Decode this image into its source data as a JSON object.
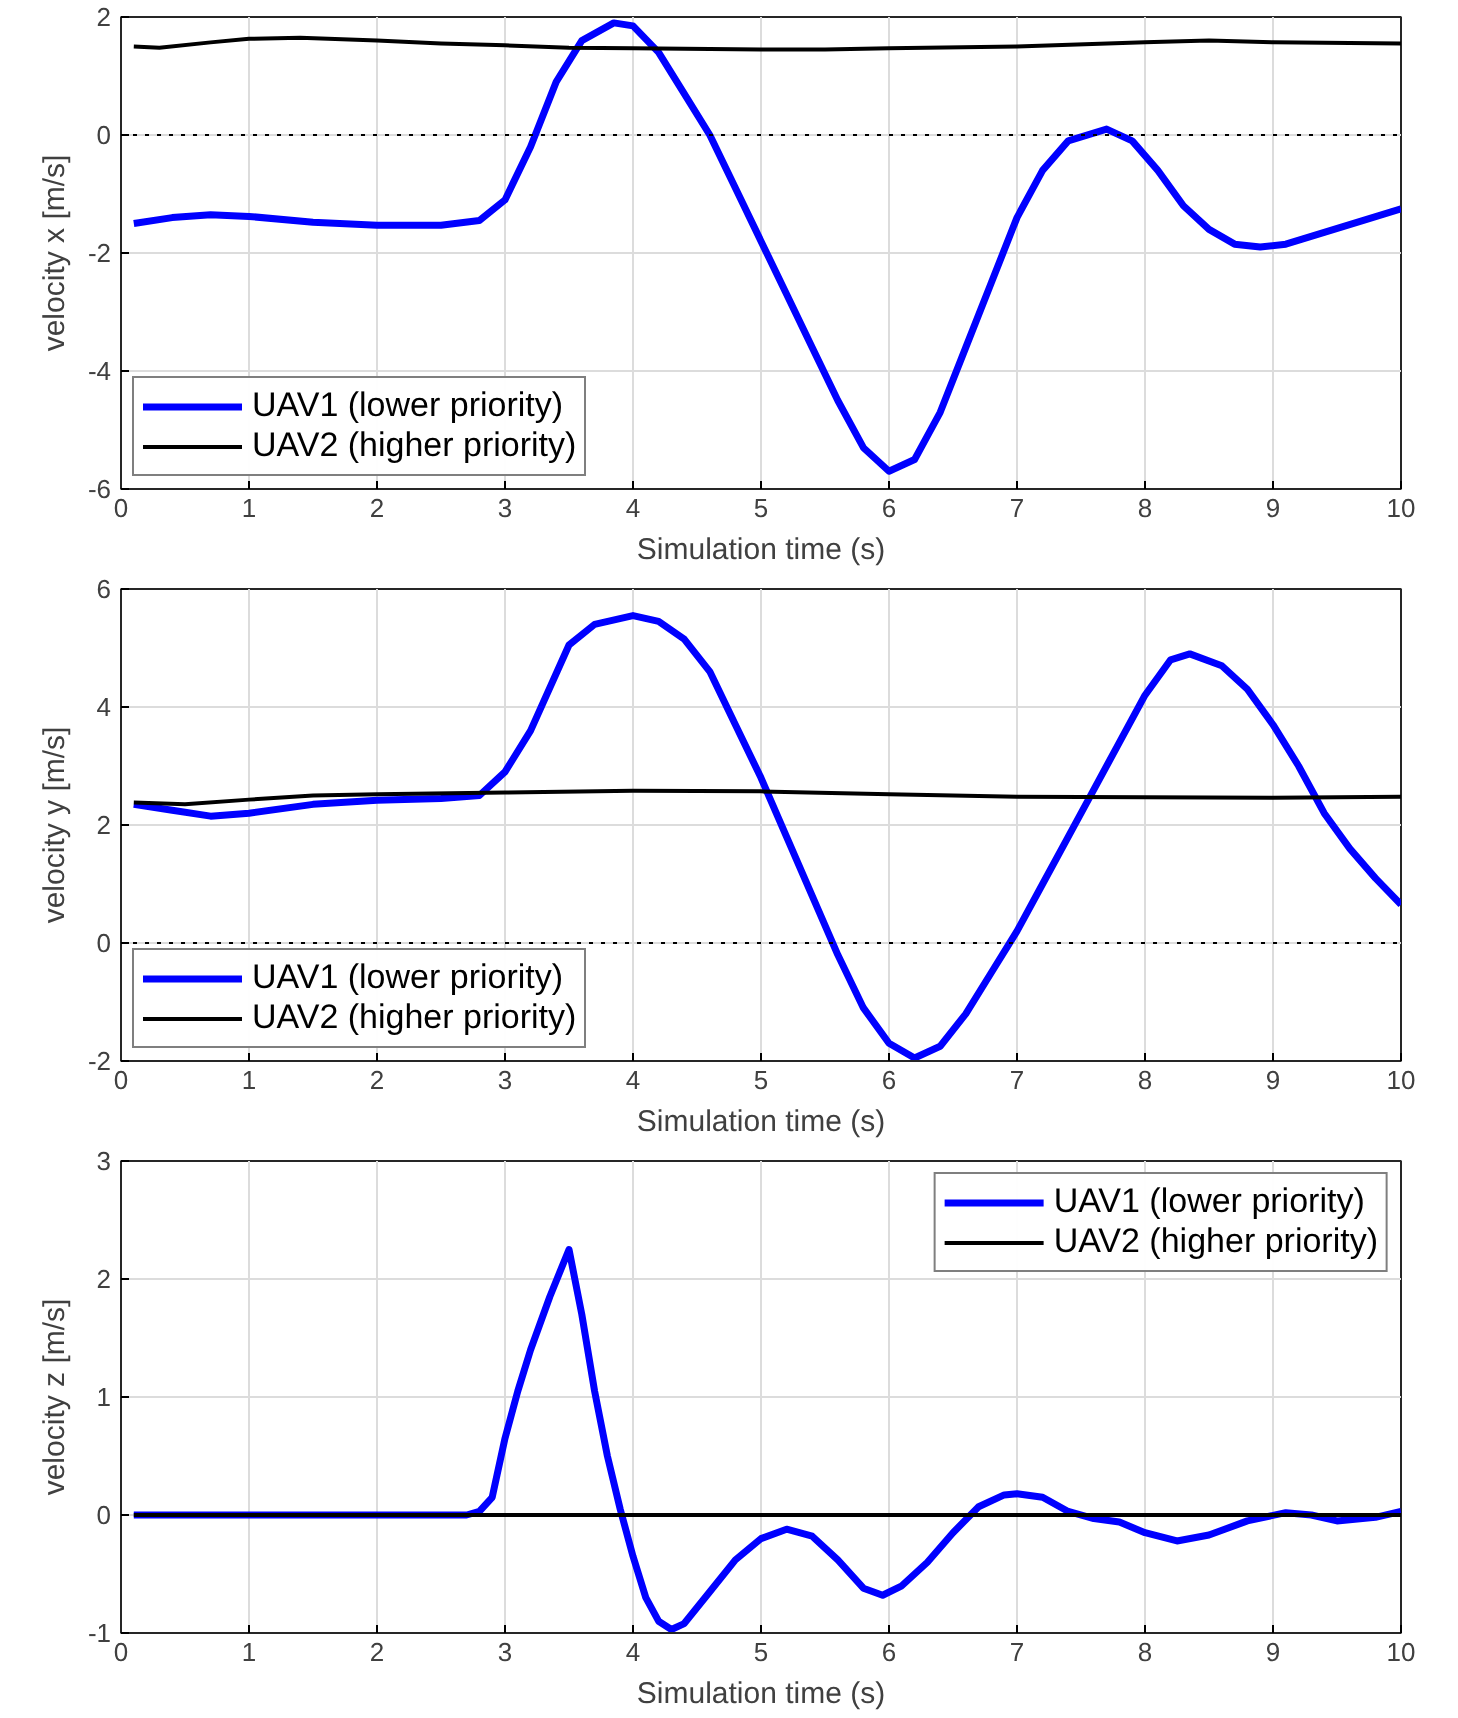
{
  "chart_data": [
    {
      "type": "line",
      "xlabel": "Simulation time (s)",
      "ylabel": "velocity x [m/s]",
      "xlim": [
        0,
        10
      ],
      "xticks": [
        0,
        1,
        2,
        3,
        4,
        5,
        6,
        7,
        8,
        9,
        10
      ],
      "ylim": [
        -6,
        2
      ],
      "yticks": [
        -6,
        -4,
        -2,
        0,
        2
      ],
      "grid": true,
      "legend": "bottom left",
      "line_style": "solid",
      "ref_lines": [
        {
          "axis": "y",
          "value": 0,
          "line_style": "dotted",
          "color": "#000000"
        }
      ],
      "series": [
        {
          "name": "UAV1 (lower priority)",
          "color": "#0000ff",
          "x": [
            0.1,
            0.4,
            0.7,
            1,
            1.5,
            2,
            2.5,
            2.8,
            3.0,
            3.2,
            3.4,
            3.6,
            3.85,
            4.0,
            4.2,
            4.4,
            4.6,
            4.8,
            5.0,
            5.2,
            5.4,
            5.6,
            5.8,
            6.0,
            6.2,
            6.4,
            6.6,
            6.8,
            7.0,
            7.2,
            7.4,
            7.7,
            7.9,
            8.1,
            8.3,
            8.5,
            8.7,
            8.9,
            9.1,
            9.4,
            9.7,
            10
          ],
          "values": [
            -1.5,
            -1.4,
            -1.35,
            -1.38,
            -1.48,
            -1.53,
            -1.53,
            -1.45,
            -1.1,
            -0.2,
            0.9,
            1.6,
            1.9,
            1.85,
            1.4,
            0.7,
            0.0,
            -0.9,
            -1.8,
            -2.7,
            -3.6,
            -4.5,
            -5.3,
            -5.7,
            -5.5,
            -4.7,
            -3.6,
            -2.5,
            -1.4,
            -0.6,
            -0.1,
            0.1,
            -0.1,
            -0.6,
            -1.2,
            -1.6,
            -1.85,
            -1.9,
            -1.85,
            -1.65,
            -1.45,
            -1.25
          ]
        },
        {
          "name": "UAV2 (higher priority)",
          "color": "#000000",
          "x": [
            0.1,
            0.3,
            0.7,
            1.0,
            1.4,
            2.0,
            2.5,
            3.0,
            3.5,
            4,
            5,
            5.5,
            6,
            7,
            8,
            8.5,
            9,
            10
          ],
          "values": [
            1.5,
            1.48,
            1.57,
            1.63,
            1.65,
            1.6,
            1.55,
            1.52,
            1.48,
            1.47,
            1.45,
            1.45,
            1.47,
            1.5,
            1.57,
            1.6,
            1.57,
            1.55
          ]
        }
      ]
    },
    {
      "type": "line",
      "xlabel": "Simulation time (s)",
      "ylabel": "velocity y [m/s]",
      "xlim": [
        0,
        10
      ],
      "xticks": [
        0,
        1,
        2,
        3,
        4,
        5,
        6,
        7,
        8,
        9,
        10
      ],
      "ylim": [
        -2,
        6
      ],
      "yticks": [
        -2,
        0,
        2,
        4,
        6
      ],
      "grid": true,
      "legend": "bottom left",
      "line_style": "solid",
      "ref_lines": [
        {
          "axis": "y",
          "value": 0,
          "line_style": "dotted",
          "color": "#000000"
        }
      ],
      "series": [
        {
          "name": "UAV1 (lower priority)",
          "color": "#0000ff",
          "x": [
            0.1,
            0.4,
            0.7,
            1,
            1.5,
            2,
            2.5,
            2.8,
            3.0,
            3.2,
            3.5,
            3.7,
            4.0,
            4.2,
            4.4,
            4.6,
            4.8,
            5.0,
            5.2,
            5.4,
            5.6,
            5.8,
            6.0,
            6.2,
            6.4,
            6.6,
            6.8,
            7.0,
            7.2,
            7.4,
            7.6,
            7.8,
            8.0,
            8.2,
            8.35,
            8.6,
            8.8,
            9.0,
            9.2,
            9.4,
            9.6,
            9.8,
            10
          ],
          "values": [
            2.35,
            2.25,
            2.15,
            2.2,
            2.35,
            2.42,
            2.45,
            2.5,
            2.9,
            3.6,
            5.05,
            5.4,
            5.55,
            5.45,
            5.15,
            4.6,
            3.7,
            2.8,
            1.8,
            0.8,
            -0.2,
            -1.1,
            -1.7,
            -1.95,
            -1.75,
            -1.2,
            -0.5,
            0.2,
            1.0,
            1.8,
            2.6,
            3.4,
            4.2,
            4.8,
            4.9,
            4.7,
            4.3,
            3.7,
            3.0,
            2.2,
            1.6,
            1.1,
            0.65
          ]
        },
        {
          "name": "UAV2 (higher priority)",
          "color": "#000000",
          "x": [
            0.1,
            0.5,
            1,
            1.5,
            2,
            3,
            4,
            5,
            6,
            7,
            8,
            9,
            10
          ],
          "values": [
            2.38,
            2.35,
            2.43,
            2.5,
            2.52,
            2.55,
            2.58,
            2.57,
            2.52,
            2.48,
            2.47,
            2.46,
            2.48
          ]
        }
      ]
    },
    {
      "type": "line",
      "xlabel": "Simulation time (s)",
      "ylabel": "velocity z [m/s]",
      "xlim": [
        0,
        10
      ],
      "xticks": [
        0,
        1,
        2,
        3,
        4,
        5,
        6,
        7,
        8,
        9,
        10
      ],
      "ylim": [
        -1,
        3
      ],
      "yticks": [
        -1,
        0,
        1,
        2,
        3
      ],
      "grid": true,
      "legend": "top right",
      "line_style": "solid",
      "series": [
        {
          "name": "UAV1 (lower priority)",
          "color": "#0000ff",
          "x": [
            0.1,
            1,
            2,
            2.7,
            2.8,
            2.9,
            3.0,
            3.1,
            3.2,
            3.35,
            3.5,
            3.6,
            3.7,
            3.8,
            3.9,
            4.0,
            4.1,
            4.2,
            4.3,
            4.4,
            4.6,
            4.8,
            5.0,
            5.2,
            5.4,
            5.6,
            5.8,
            5.95,
            6.1,
            6.3,
            6.5,
            6.7,
            6.9,
            7.0,
            7.2,
            7.4,
            7.6,
            7.8,
            8.0,
            8.25,
            8.5,
            8.8,
            9.1,
            9.3,
            9.5,
            9.8,
            10
          ],
          "values": [
            0,
            0,
            0,
            0,
            0.03,
            0.15,
            0.65,
            1.05,
            1.4,
            1.85,
            2.25,
            1.7,
            1.05,
            0.5,
            0.05,
            -0.35,
            -0.7,
            -0.9,
            -0.97,
            -0.92,
            -0.65,
            -0.38,
            -0.2,
            -0.12,
            -0.18,
            -0.38,
            -0.62,
            -0.68,
            -0.6,
            -0.4,
            -0.15,
            0.07,
            0.17,
            0.18,
            0.15,
            0.03,
            -0.03,
            -0.06,
            -0.15,
            -0.22,
            -0.17,
            -0.05,
            0.02,
            0.0,
            -0.05,
            -0.02,
            0.03
          ]
        },
        {
          "name": "UAV2 (higher priority)",
          "color": "#000000",
          "x": [
            0.1,
            2,
            4,
            6,
            8,
            10
          ],
          "values": [
            0,
            0,
            0,
            0,
            0,
            0
          ]
        }
      ]
    }
  ]
}
